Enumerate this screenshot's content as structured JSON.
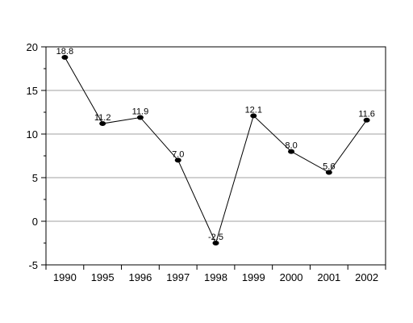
{
  "chart_data": {
    "type": "line",
    "title": "",
    "xlabel": "",
    "ylabel": "",
    "categories": [
      "1990",
      "1995",
      "1996",
      "1997",
      "1998",
      "1999",
      "2000",
      "2001",
      "2002"
    ],
    "series": [
      {
        "values": [
          18.8,
          11.2,
          11.9,
          7.0,
          -2.5,
          12.1,
          8.0,
          5.6,
          11.6
        ],
        "labels": [
          "18.8",
          "11.2",
          "11.9",
          "7.0",
          "-2.5",
          "12.1",
          "8.0",
          "5.6",
          "11.6"
        ]
      }
    ],
    "ylim": [
      -5,
      20
    ],
    "yticks": [
      "-5",
      "0",
      "5",
      "10",
      "15",
      "20"
    ],
    "grid": true,
    "legend": "none",
    "colors": {
      "line": "#000000",
      "marker": "#000000",
      "grid": "#a0a0a0",
      "axis": "#000000"
    }
  }
}
